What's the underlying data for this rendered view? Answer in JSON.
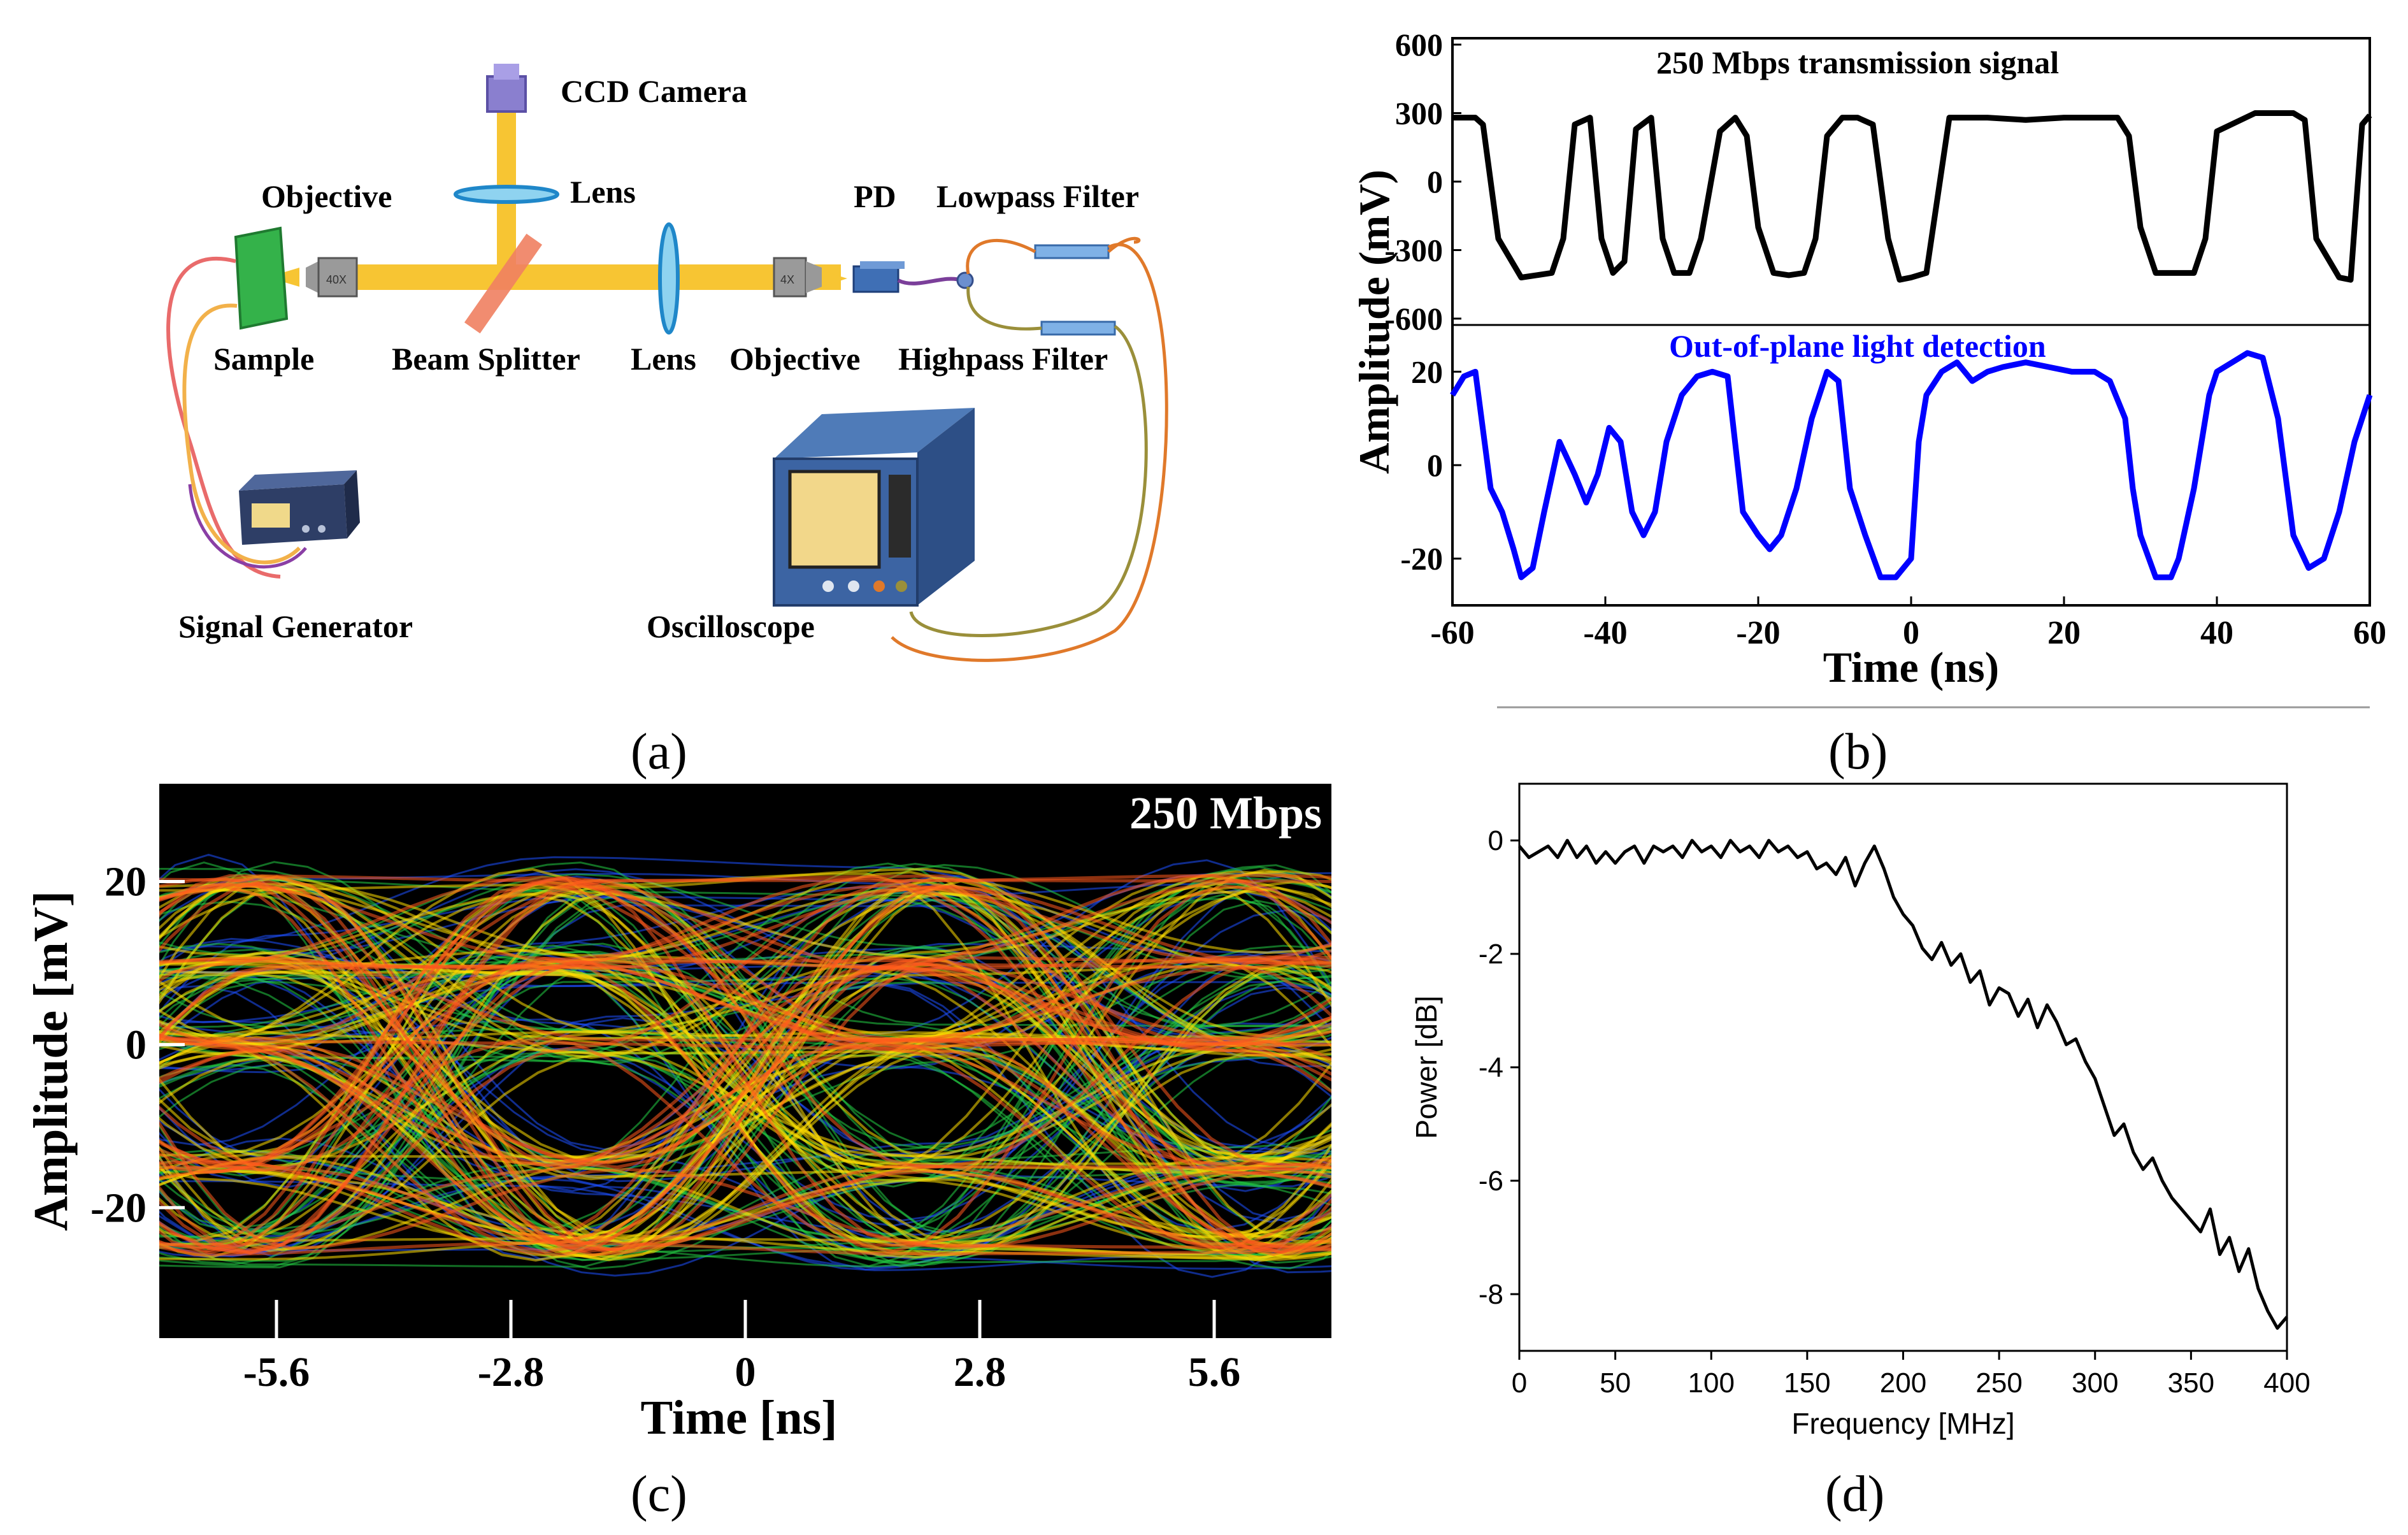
{
  "captions": {
    "a": "(a)",
    "b": "(b)",
    "c": "(c)",
    "d": "(d)"
  },
  "panel_a": {
    "labels": {
      "ccd": "CCD Camera",
      "lens_top": "Lens",
      "objective_left": "Objective",
      "pd": "PD",
      "lowpass": "Lowpass Filter",
      "sample": "Sample",
      "beam_splitter": "Beam Splitter",
      "lens_mid": "Lens",
      "objective_right": "Objective",
      "highpass": "Highpass Filter",
      "signal_generator": "Signal Generator",
      "oscilloscope": "Oscilloscope",
      "obj_left_mark": "40X",
      "obj_right_mark": "4X"
    }
  },
  "chart_data": [
    {
      "panel": "b",
      "type": "line",
      "xlabel": "Time (ns)",
      "ylabel": "Amplitude (mV)",
      "xlim": [
        -60,
        60
      ],
      "xticks": [
        "-60",
        "-40",
        "-20",
        "0",
        "20",
        "40",
        "60"
      ],
      "upper_yticks": [
        "600",
        "300",
        "0",
        "-300",
        "-600"
      ],
      "lower_yticks": [
        "20",
        "0",
        "-20"
      ],
      "upper_ylim": [
        -600,
        600
      ],
      "lower_ylim": [
        -30,
        30
      ],
      "series": [
        {
          "name": "250 Mbps transmission signal",
          "color": "#000000",
          "x": [
            -60,
            -57,
            -56,
            -54,
            -51,
            -49,
            -47,
            -45.5,
            -44,
            -42,
            -40.5,
            -39,
            -37.5,
            -36,
            -34,
            -32.5,
            -31,
            -29,
            -27.5,
            -25,
            -23,
            -21.5,
            -20,
            -18,
            -16,
            -14,
            -12.5,
            -11,
            -9,
            -7,
            -5,
            -3,
            -1.5,
            0,
            2,
            5,
            10,
            15,
            20,
            25,
            27,
            28.5,
            30,
            32,
            35,
            37,
            38.5,
            40,
            45,
            50,
            51.5,
            53,
            56,
            57.5,
            59,
            60
          ],
          "y": [
            280,
            280,
            250,
            -250,
            -420,
            -410,
            -400,
            -250,
            250,
            280,
            -250,
            -400,
            -350,
            230,
            280,
            -250,
            -400,
            -400,
            -250,
            220,
            280,
            200,
            -200,
            -400,
            -410,
            -400,
            -250,
            200,
            280,
            280,
            250,
            -250,
            -430,
            -420,
            -400,
            280,
            280,
            270,
            280,
            280,
            280,
            200,
            -200,
            -400,
            -400,
            -400,
            -250,
            220,
            300,
            300,
            270,
            -250,
            -420,
            -430,
            250,
            290
          ]
        },
        {
          "name": "Out-of-plane light detection",
          "color": "#0000ff",
          "x": [
            -60,
            -58.5,
            -57,
            -55,
            -53.5,
            -52,
            -51,
            -49.5,
            -48,
            -46,
            -44,
            -42.5,
            -41,
            -39.5,
            -38,
            -36.5,
            -35,
            -33.5,
            -32,
            -30,
            -28,
            -26,
            -24,
            -22,
            -20,
            -18.5,
            -17,
            -15,
            -13,
            -11,
            -9.5,
            -8,
            -6,
            -4,
            -2,
            0,
            1,
            2,
            4,
            6,
            8,
            10,
            12,
            15,
            18,
            21,
            24,
            26,
            28,
            29,
            30,
            32,
            34,
            35,
            37,
            39,
            40,
            42,
            44,
            46,
            48,
            50,
            52,
            54,
            56,
            58,
            60
          ],
          "y": [
            15,
            19,
            20,
            -5,
            -10,
            -18,
            -24,
            -22,
            -10,
            5,
            -2,
            -8,
            -2,
            8,
            5,
            -10,
            -15,
            -10,
            5,
            15,
            19,
            20,
            19,
            -10,
            -15,
            -18,
            -15,
            -5,
            10,
            20,
            18,
            -5,
            -15,
            -24,
            -24,
            -20,
            5,
            15,
            20,
            22,
            18,
            20,
            21,
            22,
            21,
            20,
            20,
            18,
            10,
            -5,
            -15,
            -24,
            -24,
            -20,
            -5,
            15,
            20,
            22,
            24,
            23,
            10,
            -15,
            -22,
            -20,
            -10,
            5,
            15
          ]
        }
      ]
    },
    {
      "panel": "c",
      "type": "line",
      "title": "250 Mbps",
      "xlabel": "Time [ns]",
      "ylabel": "Amplitude [mV]",
      "xlim": [
        -7,
        7
      ],
      "ylim": [
        -36,
        32
      ],
      "xticks": [
        "-5.6",
        "-2.8",
        "0",
        "2.8",
        "5.6"
      ],
      "yticks": [
        "20",
        "0",
        "-20"
      ],
      "levels_mV": [
        -25,
        -15,
        0,
        10,
        20
      ],
      "bit_period_ns": 4,
      "colors": {
        "background": "#000000",
        "outer": "#1e50ff",
        "mid": "#22cc44",
        "inner": "#ffdd00",
        "core": "#ff5a1e"
      }
    },
    {
      "panel": "d",
      "type": "line",
      "xlabel": "Frequency [MHz]",
      "ylabel": "Power [dB]",
      "xlim": [
        0,
        400
      ],
      "ylim": [
        -9,
        1
      ],
      "xticks": [
        "0",
        "50",
        "100",
        "150",
        "200",
        "250",
        "300",
        "350",
        "400"
      ],
      "yticks": [
        "0",
        "-2",
        "-4",
        "-6",
        "-8"
      ],
      "series": [
        {
          "name": "",
          "color": "#000000",
          "x": [
            0,
            5,
            10,
            15,
            20,
            25,
            30,
            35,
            40,
            45,
            50,
            55,
            60,
            65,
            70,
            75,
            80,
            85,
            90,
            95,
            100,
            105,
            110,
            115,
            120,
            125,
            130,
            135,
            140,
            145,
            150,
            155,
            160,
            165,
            170,
            175,
            180,
            185,
            190,
            195,
            200,
            205,
            210,
            215,
            220,
            225,
            230,
            235,
            240,
            245,
            250,
            255,
            260,
            265,
            270,
            275,
            280,
            285,
            290,
            295,
            300,
            305,
            310,
            315,
            320,
            325,
            330,
            335,
            340,
            345,
            350,
            355,
            360,
            365,
            370,
            375,
            380,
            385,
            390,
            395,
            400
          ],
          "y": [
            -0.1,
            -0.3,
            -0.2,
            -0.1,
            -0.3,
            0,
            -0.3,
            -0.1,
            -0.4,
            -0.2,
            -0.4,
            -0.2,
            -0.1,
            -0.4,
            -0.1,
            -0.2,
            -0.1,
            -0.3,
            0,
            -0.2,
            -0.1,
            -0.3,
            0,
            -0.2,
            -0.1,
            -0.3,
            0,
            -0.2,
            -0.1,
            -0.3,
            -0.2,
            -0.5,
            -0.4,
            -0.6,
            -0.3,
            -0.8,
            -0.4,
            -0.1,
            -0.5,
            -1.0,
            -1.3,
            -1.5,
            -1.9,
            -2.1,
            -1.8,
            -2.2,
            -2.0,
            -2.5,
            -2.3,
            -2.9,
            -2.6,
            -2.7,
            -3.1,
            -2.8,
            -3.3,
            -2.9,
            -3.2,
            -3.6,
            -3.5,
            -3.9,
            -4.2,
            -4.7,
            -5.2,
            -5.0,
            -5.5,
            -5.8,
            -5.6,
            -6.0,
            -6.3,
            -6.5,
            -6.7,
            -6.9,
            -6.5,
            -7.3,
            -7.0,
            -7.6,
            -7.2,
            -7.9,
            -8.3,
            -8.6,
            -8.4
          ]
        }
      ]
    }
  ]
}
